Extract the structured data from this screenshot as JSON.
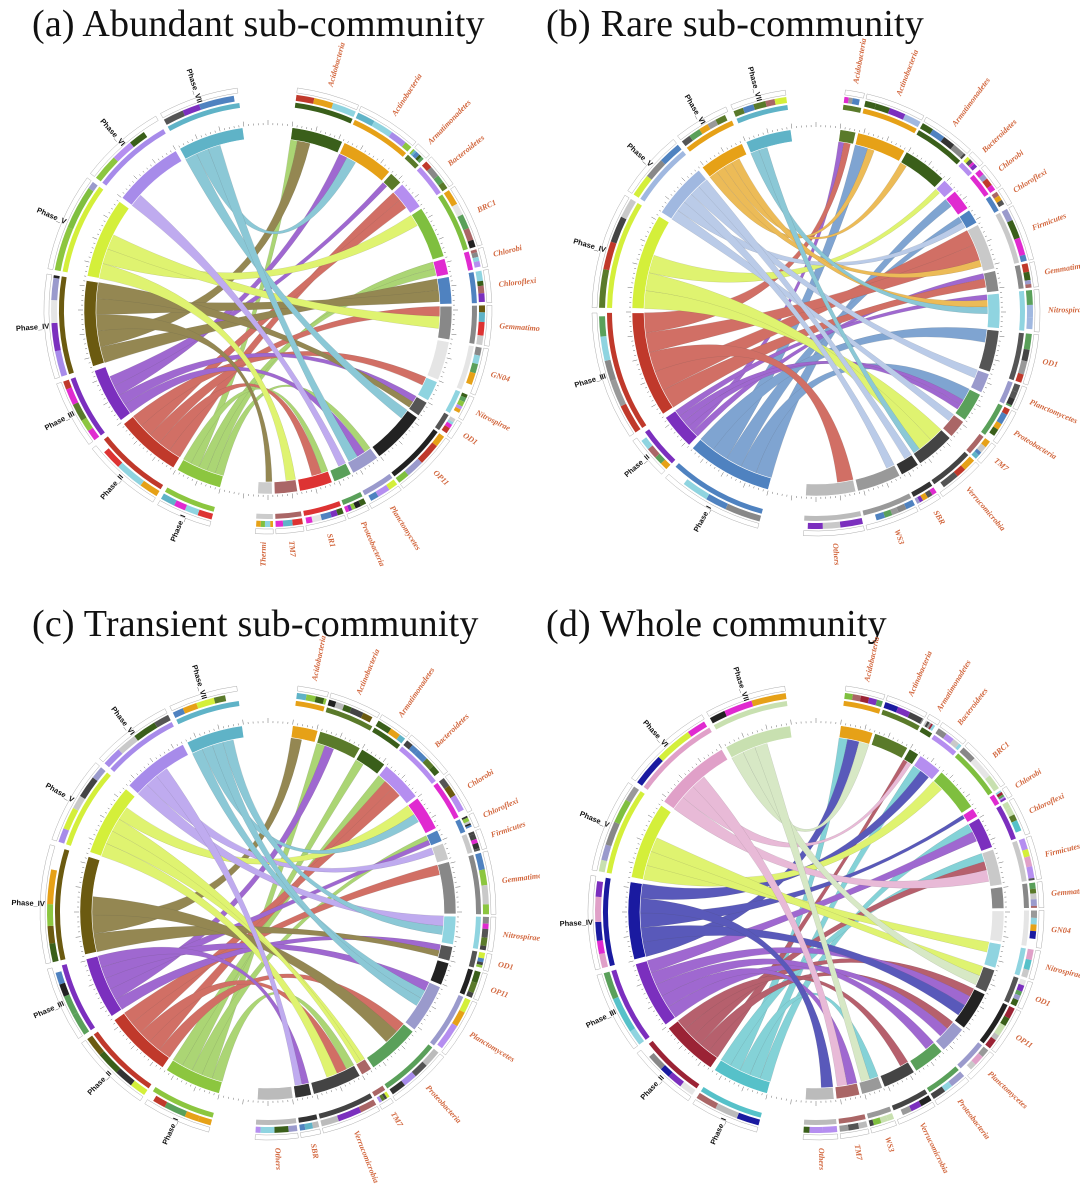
{
  "figure": {
    "panels": [
      {
        "id": "a",
        "title": "(a) Abundant sub-community"
      },
      {
        "id": "b",
        "title": "(b) Rare sub-community"
      },
      {
        "id": "c",
        "title": "(c) Transient sub-community"
      },
      {
        "id": "d",
        "title": "(d) Whole community"
      }
    ]
  },
  "chart_data": [
    {
      "type": "chord",
      "title": "(a) Abundant sub-community",
      "phases": [
        "Phase_I",
        "Phase_II",
        "Phase_III",
        "Phase_IV",
        "Phase_V",
        "Phase_VI",
        "Phase_VII"
      ],
      "taxa": [
        "Acidobacteria",
        "Actinobacteria",
        "Armatimonadetes",
        "Bacteroidetes",
        "BRC1",
        "Chlorobi",
        "Chloroflexi",
        "Gemmatimonadetes",
        "GN04",
        "Nitrospirae",
        "OD1",
        "OP11",
        "Planctomycetes",
        "Proteobacteria",
        "SR1",
        "TM7",
        "Thermi"
      ],
      "phase_colors": [
        "#8cc63f",
        "#c0392b",
        "#7b2fbe",
        "#6b5a10",
        "#d4ef3a",
        "#a78bea",
        "#5fb3c7"
      ],
      "taxon_colors": [
        "#3a5f1a",
        "#e6a117",
        "#5a7a2a",
        "#b58ef0",
        "#7fbf3f",
        "#e02ad0",
        "#4f82c0",
        "#888888",
        "#e5e5e5",
        "#8fd4e0",
        "#555555",
        "#222222",
        "#9a9acc",
        "#5aa05a",
        "#d33",
        "#a66",
        "#cccccc"
      ]
    },
    {
      "type": "chord",
      "title": "(b) Rare sub-community",
      "phases": [
        "Phase_I",
        "Phase_II",
        "Phase_III",
        "Phase_IV",
        "Phase_V",
        "Phase_VI",
        "Phase_VII"
      ],
      "taxa": [
        "Acidobacteria",
        "Actinobacteria",
        "Armatimonadetes",
        "Bacteroidetes",
        "Chlorobi",
        "Chloroflexi",
        "Firmicutes",
        "Gemmatimonadetes",
        "Nitrospirae",
        "OD1",
        "Planctomycetes",
        "Proteobacteria",
        "TM7",
        "Verrucomicrobia",
        "SBR",
        "WS3",
        "Others"
      ],
      "phase_colors": [
        "#4f82c0",
        "#7b2fbe",
        "#c0392b",
        "#d4ef3a",
        "#a0b8e0",
        "#e6a117",
        "#5fb3c7"
      ],
      "taxon_colors": [
        "#5a7a2a",
        "#e6a117",
        "#3a5f1a",
        "#b58ef0",
        "#e02ad0",
        "#4f82c0",
        "#c9c9c9",
        "#888888",
        "#8fd4e0",
        "#555555",
        "#9a9acc",
        "#5aa05a",
        "#a66",
        "#444",
        "#333",
        "#999",
        "#bbb"
      ]
    },
    {
      "type": "chord",
      "title": "(c) Transient sub-community",
      "phases": [
        "Phase_I",
        "Phase_II",
        "Phase_III",
        "Phase_IV",
        "Phase_V",
        "Phase_VI",
        "Phase_VII"
      ],
      "taxa": [
        "Acidobacteria",
        "Actinobacteria",
        "Armatimonadetes",
        "Bacteroidetes",
        "Chlorobi",
        "Chloroflexi",
        "Firmicutes",
        "Gemmatimonadetes",
        "Nitrospirae",
        "OD1",
        "OP11",
        "Planctomycetes",
        "Proteobacteria",
        "TM7",
        "Verrucomicrobia",
        "SBR",
        "Others"
      ],
      "phase_colors": [
        "#8cc63f",
        "#c0392b",
        "#7b2fbe",
        "#6b5a10",
        "#d4ef3a",
        "#a78bea",
        "#5fb3c7"
      ],
      "taxon_colors": [
        "#e6a117",
        "#5a7a2a",
        "#3a5f1a",
        "#b58ef0",
        "#e02ad0",
        "#4f82c0",
        "#c9c9c9",
        "#888888",
        "#8fd4e0",
        "#555555",
        "#222222",
        "#9a9acc",
        "#5aa05a",
        "#a66",
        "#444",
        "#333",
        "#bbb"
      ]
    },
    {
      "type": "chord",
      "title": "(d) Whole community",
      "phases": [
        "Phase_I",
        "Phase_II",
        "Phase_III",
        "Phase_IV",
        "Phase_V",
        "Phase_VI",
        "Phase_VII"
      ],
      "taxa": [
        "Acidobacteria",
        "Actinobacteria",
        "Armatimonadetes",
        "Bacteroidetes",
        "BRC1",
        "Chlorobi",
        "Chloroflexi",
        "Firmicutes",
        "Gemmatimonadetes",
        "GN04",
        "Nitrospirae",
        "OD1",
        "OP11",
        "Planctomycetes",
        "Proteobacteria",
        "Verrucomicrobia",
        "WS3",
        "TM7",
        "Others"
      ],
      "phase_colors": [
        "#56c1c9",
        "#9b2335",
        "#7b2fbe",
        "#1a1aa0",
        "#d4ef3a",
        "#e0a0c8",
        "#c8e0b0"
      ],
      "taxon_colors": [
        "#e6a117",
        "#5a7a2a",
        "#3a5f1a",
        "#b58ef0",
        "#7fbf3f",
        "#e02ad0",
        "#7b2fbe",
        "#c9c9c9",
        "#888888",
        "#e5e5e5",
        "#8fd4e0",
        "#555555",
        "#222222",
        "#9a9acc",
        "#5aa05a",
        "#444",
        "#999",
        "#a66",
        "#bbb"
      ]
    }
  ]
}
